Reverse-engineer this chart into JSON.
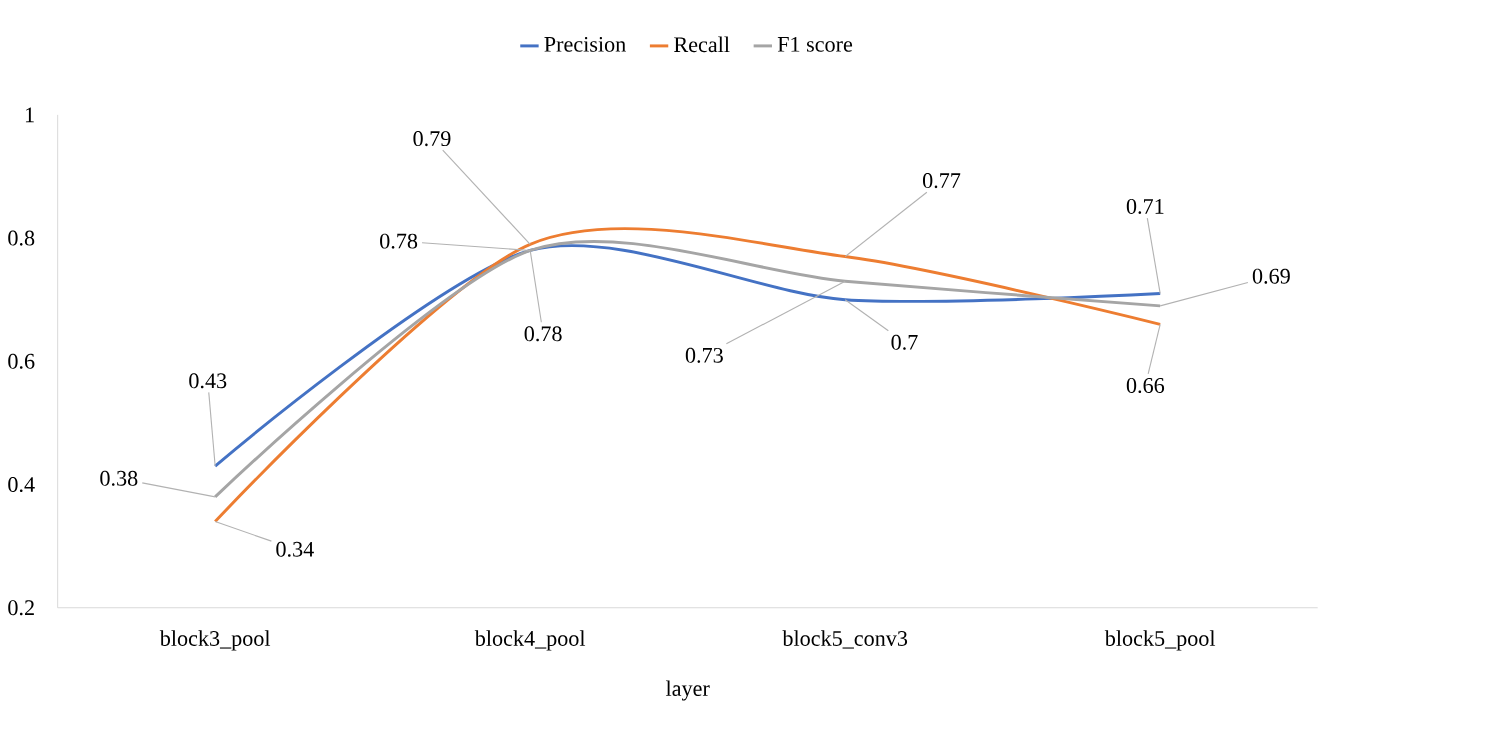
{
  "chart_data": {
    "type": "line",
    "xlabel": "layer",
    "categories": [
      "block3_pool",
      "block4_pool",
      "block5_conv3",
      "block5_pool"
    ],
    "series": [
      {
        "name": "Precision",
        "color": "#4472c4",
        "values": [
          0.43,
          0.78,
          0.7,
          0.71
        ],
        "value_labels": [
          "0.43",
          "0.78",
          "0.7",
          "0.71"
        ]
      },
      {
        "name": "Recall",
        "color": "#ed7d31",
        "values": [
          0.34,
          0.79,
          0.77,
          0.66
        ],
        "value_labels": [
          "0.34",
          "0.79",
          "0.77",
          "0.66"
        ]
      },
      {
        "name": "F1 score",
        "color": "#a5a5a5",
        "values": [
          0.38,
          0.78,
          0.73,
          0.69
        ],
        "value_labels": [
          "0.38",
          "0.78",
          "0.73",
          "0.69"
        ]
      }
    ],
    "ylim": [
      0.2,
      1
    ],
    "yticks": [
      0.2,
      0.4,
      0.6,
      0.8,
      1
    ],
    "grid": false,
    "legend": "top",
    "line_style": "solid"
  }
}
